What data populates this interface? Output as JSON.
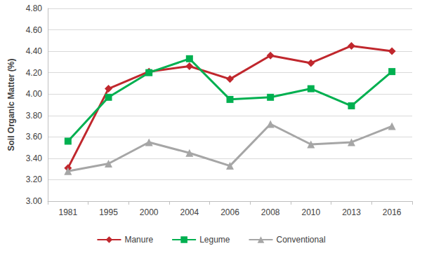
{
  "chart_data": {
    "type": "line",
    "y_label": "Soil Organic Matter (%)",
    "categories": [
      "1981",
      "1995",
      "2000",
      "2004",
      "2006",
      "2008",
      "2010",
      "2013",
      "2016"
    ],
    "series": [
      {
        "name": "Manure",
        "color": "#c0272d",
        "marker": "diamond",
        "values": [
          3.31,
          4.05,
          4.21,
          4.26,
          4.14,
          4.36,
          4.29,
          4.45,
          4.4
        ]
      },
      {
        "name": "Legume",
        "color": "#00b050",
        "marker": "square",
        "values": [
          3.56,
          3.97,
          4.2,
          4.33,
          3.95,
          3.97,
          4.05,
          3.89,
          4.21
        ]
      },
      {
        "name": "Conventional",
        "color": "#a6a6a6",
        "marker": "triangle",
        "values": [
          3.28,
          3.35,
          3.55,
          3.45,
          3.33,
          3.72,
          3.53,
          3.55,
          3.7
        ]
      }
    ],
    "ylim": [
      3.0,
      4.8
    ],
    "yticks": [
      {
        "value": 3.0,
        "label": "3.00"
      },
      {
        "value": 3.2,
        "label": "3.20"
      },
      {
        "value": 3.4,
        "label": "3.40"
      },
      {
        "value": 3.6,
        "label": "3.60"
      },
      {
        "value": 3.8,
        "label": "3.80"
      },
      {
        "value": 4.0,
        "label": "4.00"
      },
      {
        "value": 4.2,
        "label": "4.20"
      },
      {
        "value": 4.4,
        "label": "4.40"
      },
      {
        "value": 4.6,
        "label": "4.60"
      },
      {
        "value": 4.8,
        "label": "4.80"
      }
    ],
    "grid": true,
    "legend": "bottom"
  }
}
